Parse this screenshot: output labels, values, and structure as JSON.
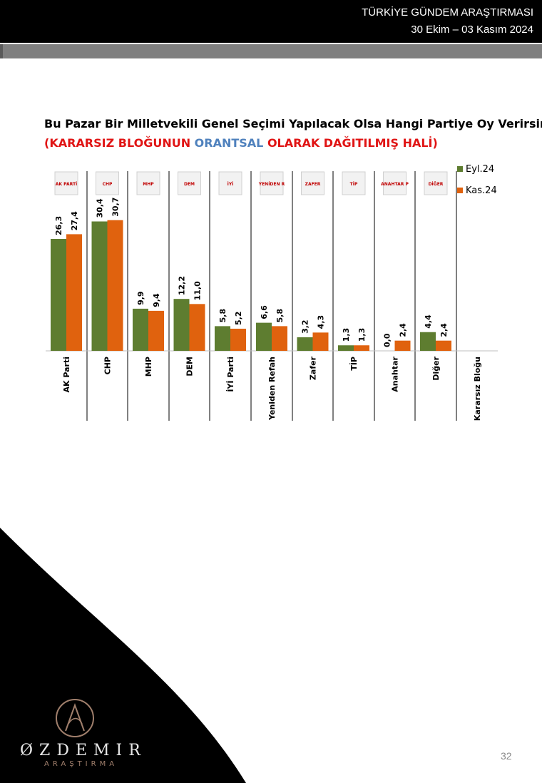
{
  "header": {
    "line1": "TÜRKİYE GÜNDEM ARAŞTIRMASI",
    "line2": "30 Ekim – 03 Kasım 2024"
  },
  "question": "Bu Pazar Bir Milletvekili Genel Seçimi Yapılacak Olsa Hangi Partiye Oy Verirsiniz?",
  "subtitle_parts": {
    "a": "(KARARSIZ BLOĞUNUN ",
    "b": "ORANTSAL",
    "c": " OLARAK DAĞITILMIŞ HALİ)"
  },
  "colors": {
    "eyl": "#5e7d30",
    "kas": "#e0620e",
    "subtitle_red": "#e01414",
    "subtitle_blue": "#4f81bd",
    "header_bg": "#000000"
  },
  "chart_data": {
    "type": "bar",
    "categories": [
      "AK Parti",
      "CHP",
      "MHP",
      "DEM",
      "İYİ Parti",
      "Yeniden Refah",
      "Zafer",
      "TİP",
      "Anahtar",
      "Diğer",
      "Kararsız Bloğu"
    ],
    "series": [
      {
        "name": "Eyl.24",
        "values": [
          26.3,
          30.4,
          9.9,
          12.2,
          5.8,
          6.6,
          3.2,
          1.3,
          0.0,
          4.4,
          null
        ]
      },
      {
        "name": "Kas.24",
        "values": [
          27.4,
          30.7,
          9.4,
          11.0,
          5.2,
          5.8,
          4.3,
          1.3,
          2.4,
          2.4,
          null
        ]
      }
    ],
    "value_labels": [
      [
        "26,3",
        "30,4",
        "9,9",
        "12,2",
        "5,8",
        "6,6",
        "3,2",
        "1,3",
        "0,0",
        "4,4",
        ""
      ],
      [
        "27,4",
        "30,7",
        "9,4",
        "11,0",
        "5,2",
        "5,8",
        "4,3",
        "1,3",
        "2,4",
        "2,4",
        ""
      ]
    ],
    "logos": [
      "AK PARTİ",
      "CHP",
      "MHP",
      "DEM",
      "İYİ",
      "YENİDEN REFAH",
      "ZAFER",
      "TİP",
      "ANAHTAR PARTİ",
      "DİĞER",
      ""
    ],
    "legend_position": "top-right",
    "ylim": [
      0,
      35
    ],
    "grid": false
  },
  "footer": {
    "brand": "ØZDEMIR",
    "brand_sub": "ARAŞTIRMA",
    "page": "32"
  }
}
